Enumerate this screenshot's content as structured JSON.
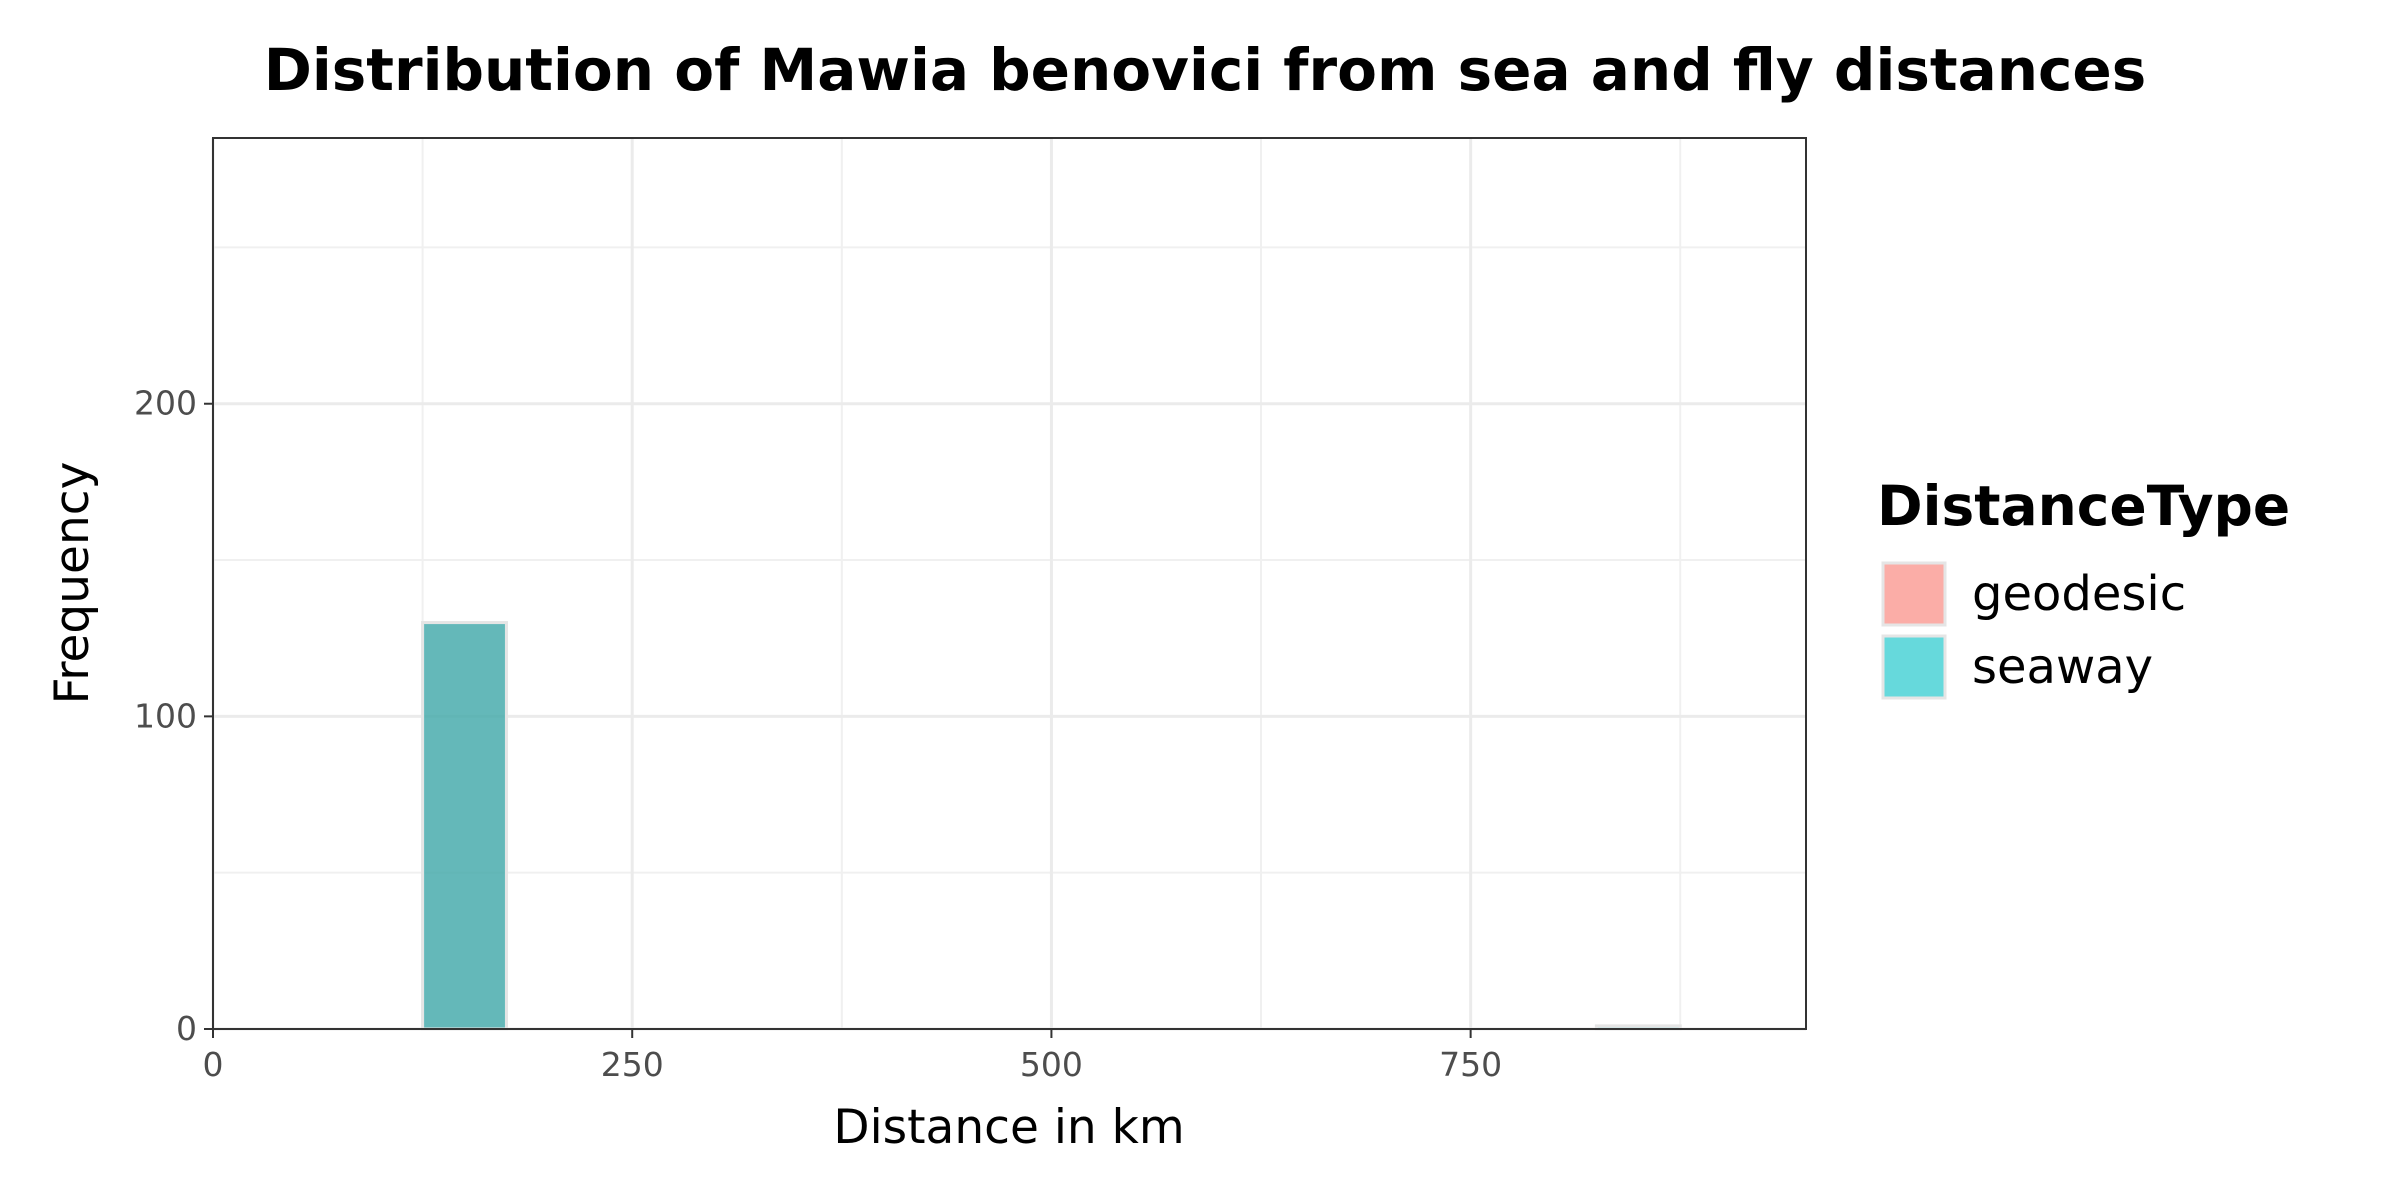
{
  "chart_data": {
    "type": "bar",
    "title": "Distribution of Mawia benovici from sea and fly distances",
    "xlabel": "Distance in km",
    "ylabel": "Frequency",
    "xlim": [
      0,
      950
    ],
    "ylim": [
      0,
      285
    ],
    "x_ticks": [
      0,
      250,
      500,
      750
    ],
    "y_ticks": [
      0,
      100,
      200
    ],
    "grid": true,
    "legend": {
      "title": "DistanceType",
      "position": "right",
      "entries": [
        "geodesic",
        "seaway"
      ]
    },
    "bin_width": 50,
    "series": [
      {
        "name": "geodesic",
        "color": "#F8766D",
        "bins": [
          {
            "x_start": 125,
            "x_end": 175,
            "count": 130
          }
        ]
      },
      {
        "name": "seaway",
        "color": "#00BFC4",
        "bins": [
          {
            "x_start": 125,
            "x_end": 175,
            "count": 130
          },
          {
            "x_start": 825,
            "x_end": 875,
            "count": 1
          }
        ]
      }
    ]
  }
}
